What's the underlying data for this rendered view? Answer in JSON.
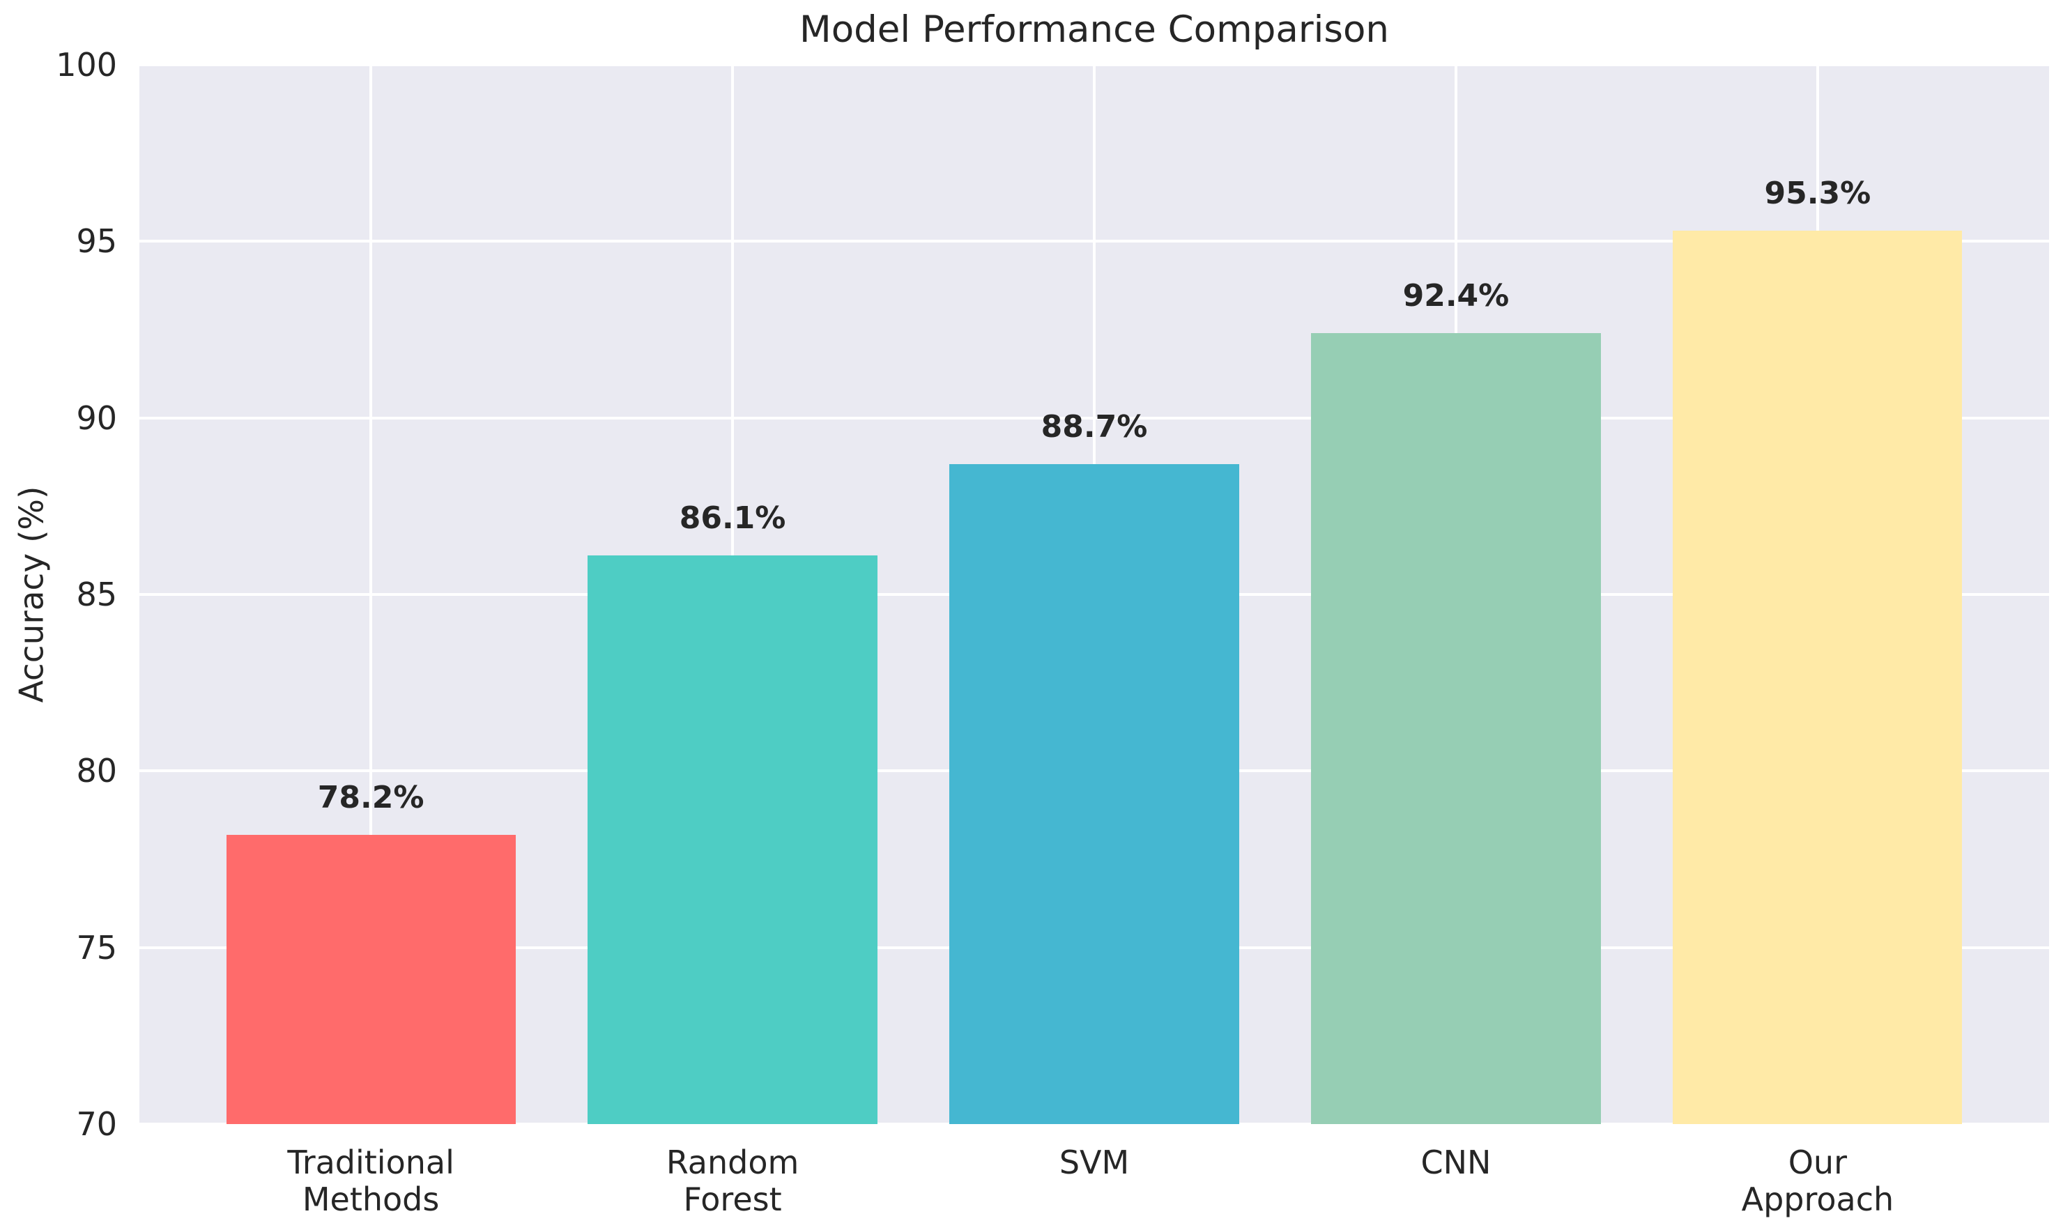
{
  "chart_data": {
    "type": "bar",
    "title": "Model Performance Comparison",
    "ylabel": "Accuracy (%)",
    "xlabel": "",
    "categories": [
      "Traditional\nMethods",
      "Random\nForest",
      "SVM",
      "CNN",
      "Our\nApproach"
    ],
    "values": [
      78.2,
      86.1,
      88.7,
      92.4,
      95.3
    ],
    "value_labels": [
      "78.2%",
      "86.1%",
      "88.7%",
      "92.4%",
      "95.3%"
    ],
    "bar_colors": [
      "#FF6B6B",
      "#4ECDC4",
      "#45B7D1",
      "#96CEB4",
      "#FFEAA7"
    ],
    "ylim": [
      70,
      100
    ],
    "yticks": [
      70,
      75,
      80,
      85,
      90,
      95,
      100
    ],
    "grid": "on",
    "legend": "none",
    "style": {
      "plot_background": "#EAEAF2",
      "figure_background": "#FFFFFF",
      "gridline_color": "#FFFFFF",
      "text_color": "#262626"
    }
  }
}
